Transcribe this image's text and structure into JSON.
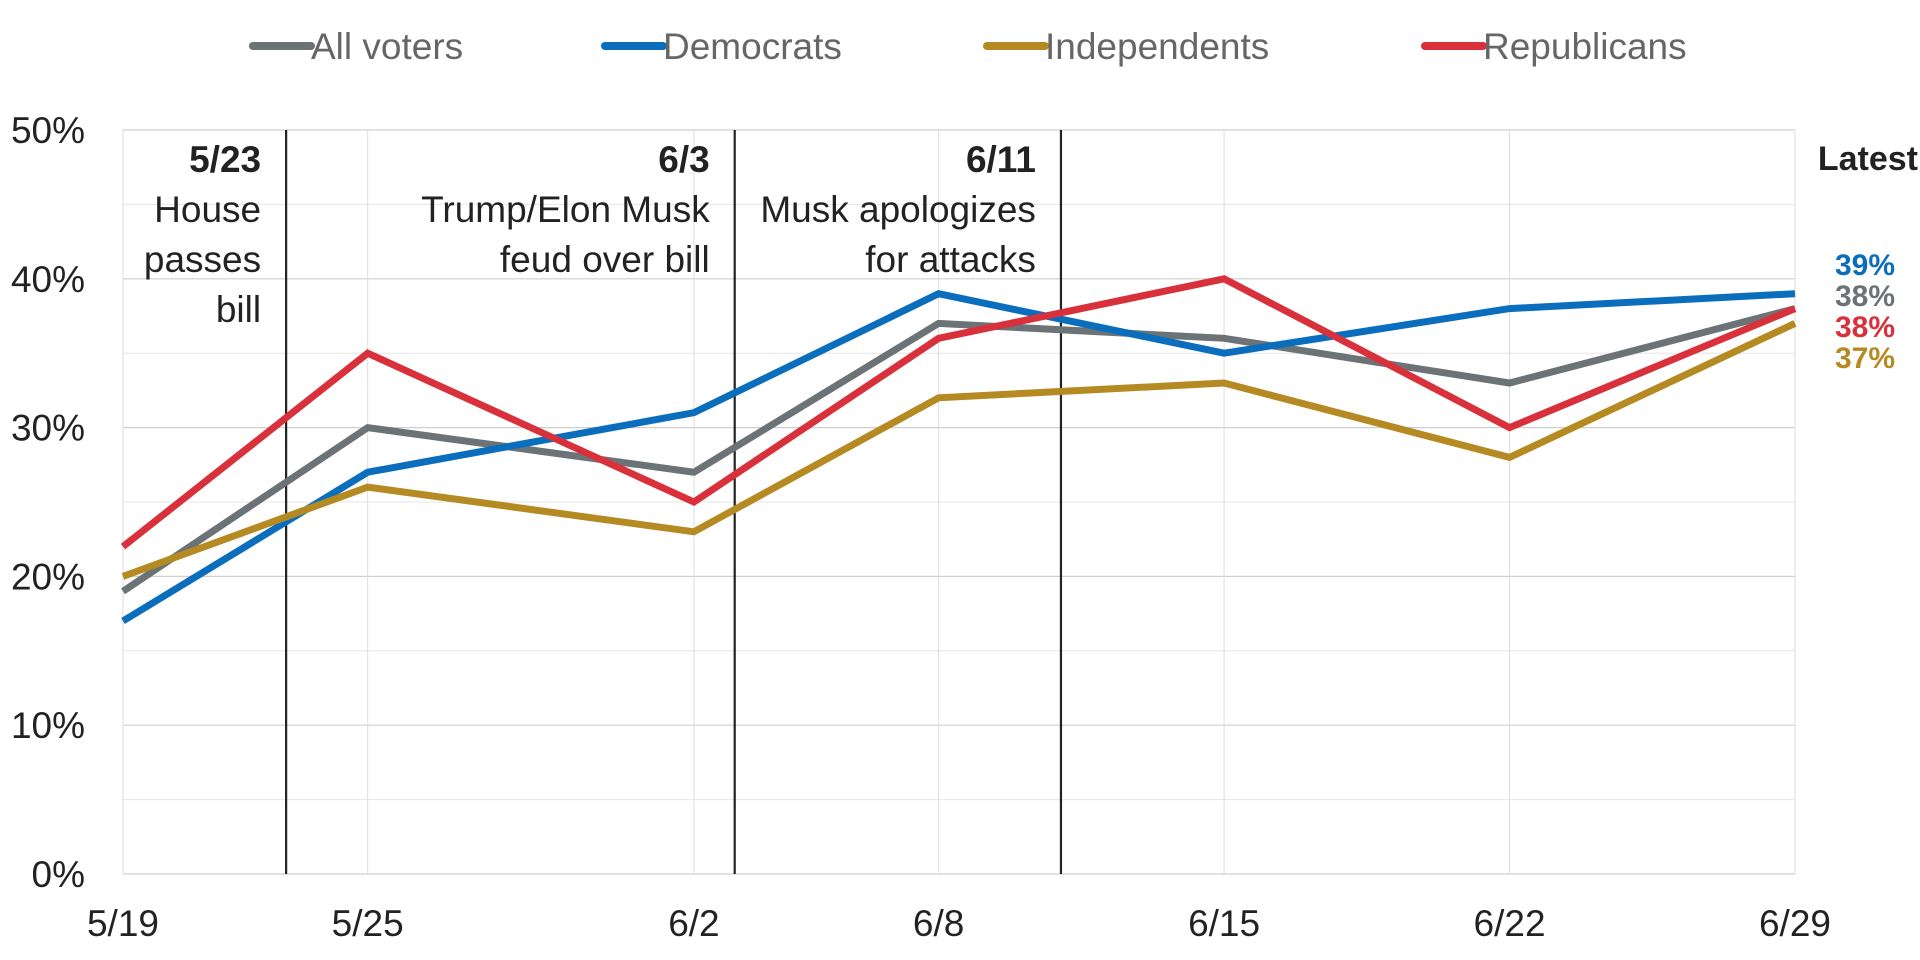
{
  "chart_data": {
    "type": "line",
    "x": [
      "5/19",
      "5/25",
      "6/2",
      "6/8",
      "6/15",
      "6/22",
      "6/29"
    ],
    "ylim": [
      0,
      50
    ],
    "yticks": [
      "0%",
      "10%",
      "20%",
      "30%",
      "40%",
      "50%"
    ],
    "grid": true,
    "legend_position": "top",
    "series": [
      {
        "name": "All voters",
        "color": "#6b7377",
        "values": [
          19,
          30,
          27,
          37,
          36,
          33,
          38
        ]
      },
      {
        "name": "Democrats",
        "color": "#0a6ebd",
        "values": [
          17,
          27,
          31,
          39,
          35,
          38,
          39
        ]
      },
      {
        "name": "Independents",
        "color": "#b58a22",
        "values": [
          20,
          26,
          23,
          32,
          33,
          28,
          37
        ]
      },
      {
        "name": "Republicans",
        "color": "#d9313b",
        "values": [
          22,
          35,
          25,
          36,
          40,
          30,
          38
        ]
      }
    ],
    "events": [
      {
        "date": "5/23",
        "lines": [
          "House",
          "passes",
          "bill"
        ]
      },
      {
        "date": "6/3",
        "lines": [
          "Trump/Elon Musk",
          "feud over bill"
        ]
      },
      {
        "date": "6/11",
        "lines": [
          "Musk apologizes",
          "for attacks"
        ]
      }
    ],
    "latest": {
      "title": "Latest",
      "labels": [
        {
          "text": "39%",
          "color": "#0a6ebd"
        },
        {
          "text": "38%",
          "color": "#6b7377"
        },
        {
          "text": "38%",
          "color": "#d9313b"
        },
        {
          "text": "37%",
          "color": "#b58a22"
        }
      ]
    }
  }
}
